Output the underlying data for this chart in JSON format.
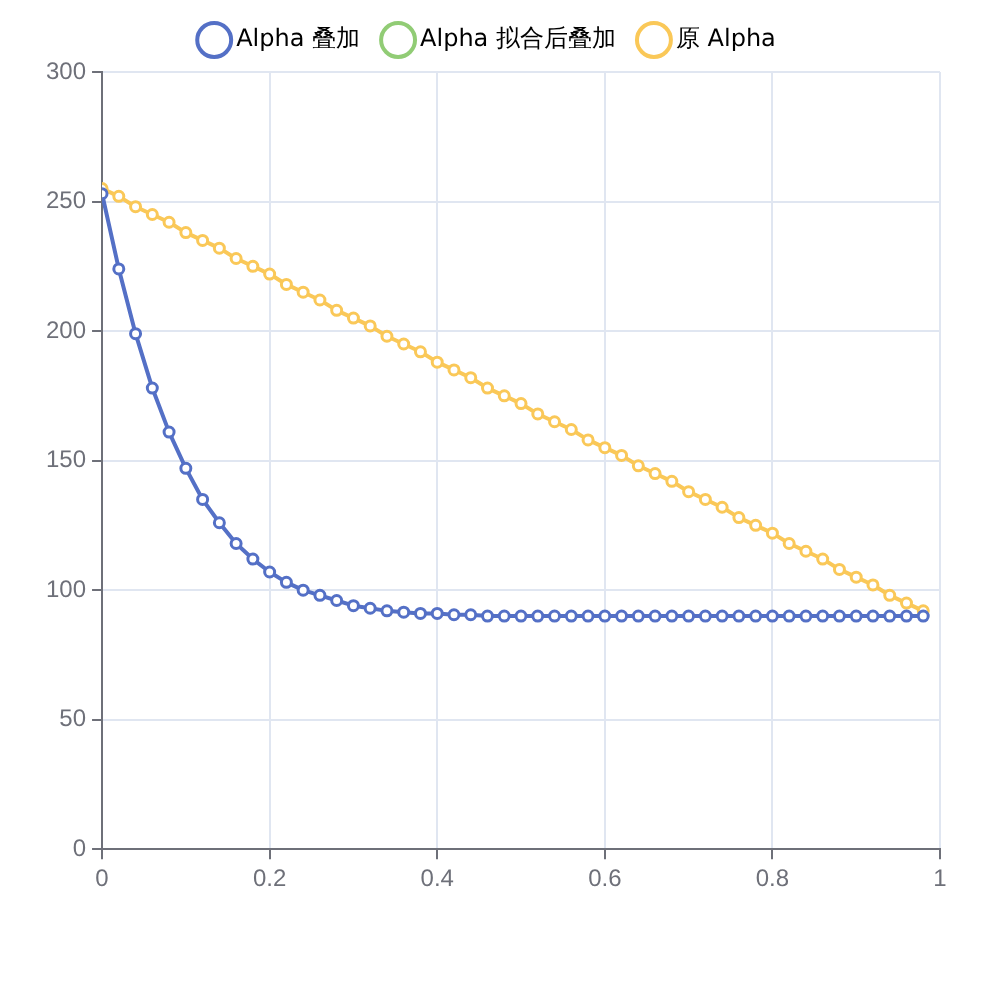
{
  "chart_data": {
    "type": "line",
    "legend": "top",
    "grid": true,
    "marker": "circle",
    "line_style": "solid",
    "x": [
      0,
      0.02,
      0.04,
      0.06,
      0.08,
      0.1,
      0.12,
      0.14,
      0.16,
      0.18,
      0.2,
      0.22,
      0.24,
      0.26,
      0.28,
      0.3,
      0.32,
      0.34,
      0.36,
      0.38,
      0.4,
      0.42,
      0.44,
      0.46,
      0.48,
      0.5,
      0.52,
      0.54,
      0.56,
      0.58,
      0.6,
      0.62,
      0.64,
      0.66,
      0.68,
      0.7,
      0.72,
      0.74,
      0.76,
      0.78,
      0.8,
      0.82,
      0.84,
      0.86,
      0.88,
      0.9,
      0.92,
      0.94,
      0.96,
      0.98
    ],
    "xlim": [
      0,
      1
    ],
    "xticks": [
      0,
      0.2,
      0.4,
      0.6,
      0.8,
      1
    ],
    "ylim": [
      0,
      300
    ],
    "yticks": [
      0,
      50,
      100,
      150,
      200,
      250,
      300
    ],
    "series": [
      {
        "name": "Alpha 叠加",
        "color": "#5470c6",
        "values": [
          253,
          224,
          199,
          178,
          161,
          147,
          135,
          126,
          118,
          112,
          107,
          103,
          100,
          98,
          96,
          94,
          93,
          92,
          91.5,
          91,
          91,
          90.5,
          90.5,
          90,
          90,
          90,
          90,
          90,
          90,
          90,
          90,
          90,
          90,
          90,
          90,
          90,
          90,
          90,
          90,
          90,
          90,
          90,
          90,
          90,
          90,
          90,
          90,
          90,
          90,
          90
        ]
      },
      {
        "name": "Alpha 拟合后叠加",
        "color": "#91cc75",
        "values": [
          null,
          null,
          null,
          null,
          null,
          null,
          null,
          null,
          null,
          null,
          null,
          null,
          null,
          null,
          null,
          null,
          null,
          null,
          null,
          null,
          null,
          null,
          null,
          null,
          null,
          null,
          null,
          null,
          null,
          null,
          null,
          null,
          null,
          null,
          null,
          null,
          null,
          null,
          null,
          null,
          null,
          null,
          null,
          null,
          null,
          null,
          null,
          null,
          null,
          null
        ]
      },
      {
        "name": "原 Alpha",
        "color": "#fac858",
        "values": [
          255,
          252,
          248,
          245,
          242,
          238,
          235,
          232,
          228,
          225,
          222,
          218,
          215,
          212,
          208,
          205,
          202,
          198,
          195,
          192,
          188,
          185,
          182,
          178,
          175,
          172,
          168,
          165,
          162,
          158,
          155,
          152,
          148,
          145,
          142,
          138,
          135,
          132,
          128,
          125,
          122,
          118,
          115,
          112,
          108,
          105,
          102,
          98,
          95,
          92
        ]
      }
    ]
  }
}
